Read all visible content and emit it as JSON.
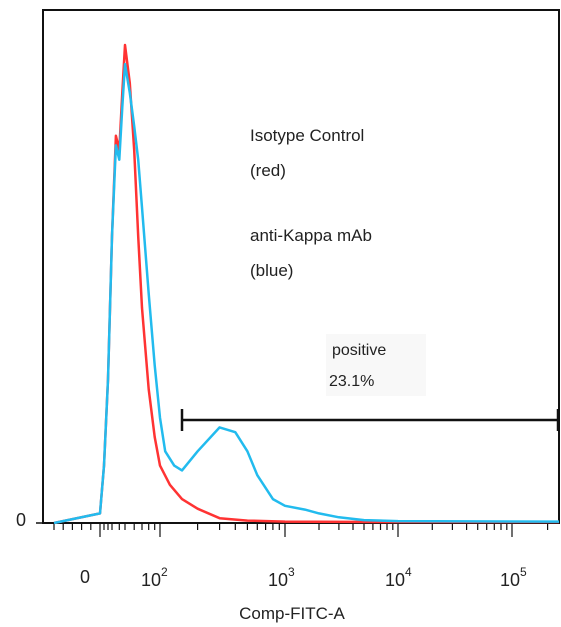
{
  "chart_data": {
    "type": "line",
    "xlabel": "Comp-FITC-A",
    "x_scale": "biexponential",
    "y_tick_labels": [
      "0"
    ],
    "x_tick_labels": [
      {
        "value": 0,
        "base": "0",
        "exp": ""
      },
      {
        "value": 100,
        "base": "10",
        "exp": "2"
      },
      {
        "value": 1000,
        "base": "10",
        "exp": "3"
      },
      {
        "value": 10000,
        "base": "10",
        "exp": "4"
      },
      {
        "value": 100000,
        "base": "10",
        "exp": "5"
      }
    ],
    "annotations": [
      {
        "text": "Isotype Control"
      },
      {
        "text": "(red)"
      },
      {
        "text": "anti-Kappa mAb"
      },
      {
        "text": "(blue)"
      }
    ],
    "gate": {
      "label": "positive",
      "value": "23.1%",
      "x_start": 150,
      "x_end": 250000
    },
    "series": [
      {
        "color": "#ff3333",
        "x": [
          -100,
          0,
          10,
          20,
          30,
          35,
          40,
          45,
          50,
          55,
          60,
          65,
          70,
          80,
          90,
          100,
          120,
          150,
          200,
          300,
          500,
          1000,
          10000,
          250000
        ],
        "y": [
          0,
          0.02,
          0.12,
          0.3,
          0.6,
          0.81,
          0.78,
          0.9,
          1.0,
          0.92,
          0.78,
          0.6,
          0.45,
          0.28,
          0.18,
          0.12,
          0.08,
          0.05,
          0.03,
          0.01,
          0.005,
          0.003,
          0.002,
          0.002
        ]
      },
      {
        "color": "#22bbee",
        "x": [
          -100,
          0,
          10,
          20,
          30,
          35,
          40,
          45,
          50,
          55,
          60,
          65,
          70,
          80,
          90,
          100,
          110,
          130,
          150,
          200,
          300,
          400,
          500,
          600,
          800,
          1000,
          1500,
          2000,
          3000,
          5000,
          10000,
          250000
        ],
        "y": [
          0,
          0.02,
          0.12,
          0.3,
          0.6,
          0.79,
          0.76,
          0.87,
          0.96,
          0.9,
          0.83,
          0.76,
          0.66,
          0.48,
          0.33,
          0.22,
          0.15,
          0.12,
          0.11,
          0.15,
          0.2,
          0.19,
          0.15,
          0.1,
          0.05,
          0.036,
          0.028,
          0.02,
          0.012,
          0.006,
          0.004,
          0.003
        ]
      }
    ]
  }
}
